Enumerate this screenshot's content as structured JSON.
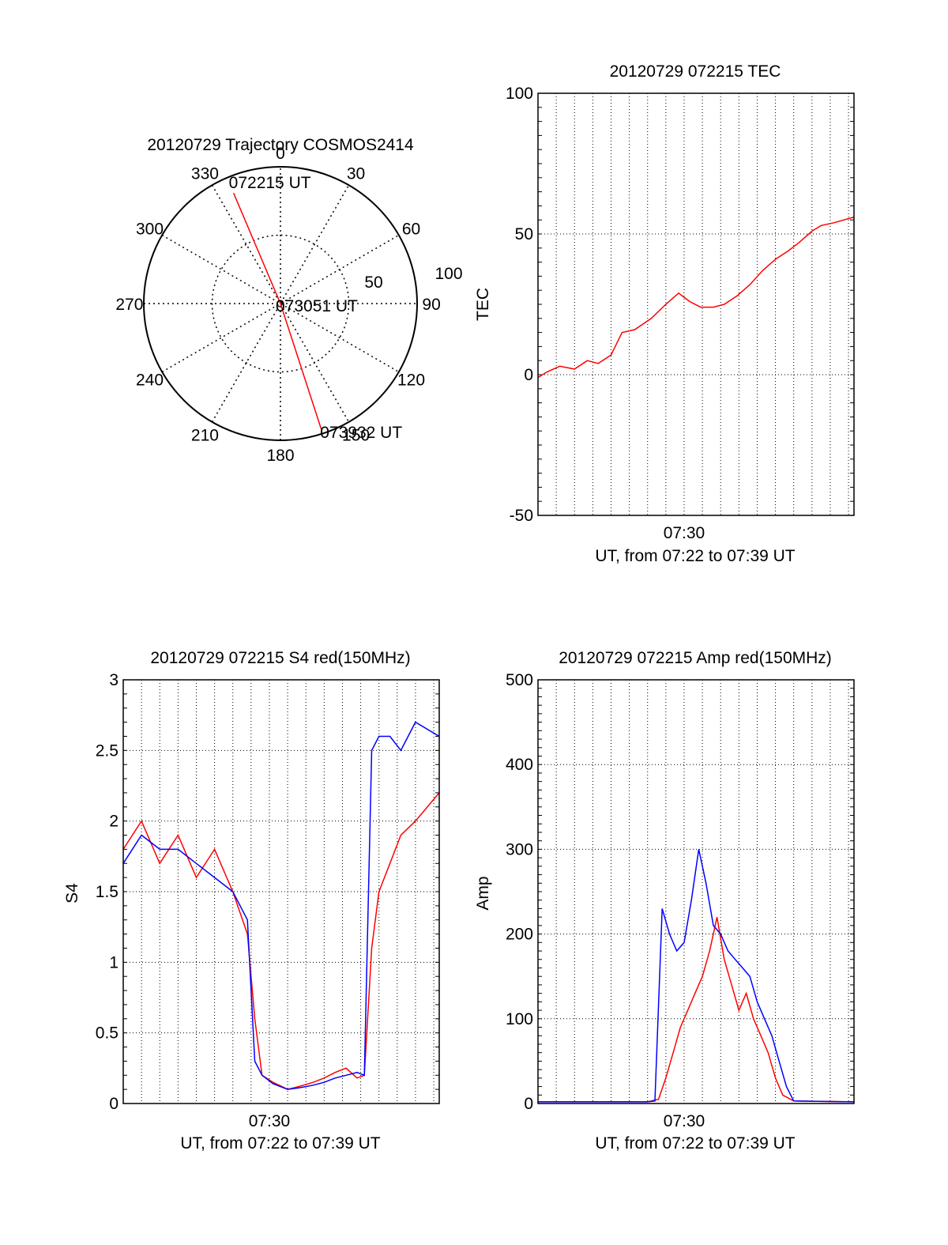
{
  "chart_data": [
    {
      "type": "polar",
      "title": "20120729 Trajectory COSMOS2414",
      "angle_labels": [
        "0",
        "30",
        "60",
        "90",
        "120",
        "150",
        "180",
        "210",
        "240",
        "270",
        "300",
        "330"
      ],
      "radial_labels": [
        "50",
        "100"
      ],
      "trajectory": {
        "color": "#ff0000",
        "points": [
          {
            "az": 337,
            "zen": 79
          },
          {
            "az": 0,
            "zen": 0
          },
          {
            "az": 162,
            "zen": 88
          }
        ],
        "labels": [
          {
            "text": "072215 UT",
            "at": "start"
          },
          {
            "text": "073051 UT",
            "at": "middle"
          },
          {
            "text": "073932 UT",
            "at": "end"
          }
        ]
      }
    },
    {
      "type": "line",
      "title": "20120729 072215 TEC",
      "ylabel": "TEC",
      "xlabel": "UT, from 07:22 to 07:39 UT",
      "xtick": "07:30",
      "yticks": [
        "-50",
        "0",
        "50",
        "100"
      ],
      "ylim": [
        -50,
        100
      ],
      "xlim_min": [
        0,
        17.3
      ],
      "grid": true,
      "series": [
        {
          "color": "#ff0000",
          "x": [
            0,
            0.5,
            1.2,
            2,
            2.7,
            3.3,
            4,
            4.6,
            5.3,
            6.2,
            7,
            7.7,
            8.3,
            8.9,
            9.6,
            10.2,
            10.9,
            11.6,
            12.3,
            13,
            13.7,
            14.3,
            15,
            15.5,
            16.2,
            17.3
          ],
          "y": [
            -1,
            1,
            3,
            2,
            5,
            4,
            7,
            15,
            16,
            20,
            25,
            29,
            26,
            24,
            24,
            25,
            28,
            32,
            37,
            41,
            44,
            47,
            51,
            53,
            54,
            56
          ]
        }
      ]
    },
    {
      "type": "line",
      "title": "20120729 072215 S4 red(150MHz)",
      "ylabel": "S4",
      "xlabel": "UT, from 07:22 to 07:39 UT",
      "xtick": "07:30",
      "yticks": [
        "0",
        "0.5",
        "1",
        "1.5",
        "2",
        "2.5",
        "3"
      ],
      "ylim": [
        0,
        3
      ],
      "xlim_min": [
        0,
        17.3
      ],
      "grid": true,
      "series": [
        {
          "color": "#ff0000",
          "x": [
            0,
            1,
            2,
            3,
            4,
            5,
            6,
            6.8,
            7.2,
            7.6,
            8.2,
            9,
            9.6,
            10.4,
            11,
            11.6,
            12.2,
            12.8,
            13.2,
            13.6,
            14,
            14.6,
            15.2,
            16,
            17.3
          ],
          "y": [
            1.8,
            2.0,
            1.7,
            1.9,
            1.6,
            1.8,
            1.5,
            1.2,
            0.6,
            0.2,
            0.15,
            0.1,
            0.12,
            0.15,
            0.18,
            0.22,
            0.25,
            0.18,
            0.2,
            1.1,
            1.5,
            1.7,
            1.9,
            2.0,
            2.2
          ]
        },
        {
          "color": "#0000ff",
          "x": [
            0,
            1,
            2,
            3,
            4,
            5,
            6,
            6.8,
            7.2,
            7.6,
            8.2,
            9,
            9.6,
            10.4,
            11,
            11.6,
            12.2,
            12.8,
            13.2,
            13.6,
            14,
            14.6,
            15.2,
            16,
            17.3
          ],
          "y": [
            1.7,
            1.9,
            1.8,
            1.8,
            1.7,
            1.6,
            1.5,
            1.3,
            0.3,
            0.2,
            0.14,
            0.1,
            0.11,
            0.13,
            0.15,
            0.18,
            0.2,
            0.22,
            0.2,
            2.5,
            2.6,
            2.6,
            2.5,
            2.7,
            2.6
          ]
        }
      ]
    },
    {
      "type": "line",
      "title": "20120729 072215 Amp red(150MHz)",
      "ylabel": "Amp",
      "xlabel": "UT, from 07:22 to 07:39 UT",
      "xtick": "07:30",
      "yticks": [
        "0",
        "100",
        "200",
        "300",
        "400",
        "500"
      ],
      "ylim": [
        0,
        500
      ],
      "xlim_min": [
        0,
        17.3
      ],
      "grid": true,
      "series": [
        {
          "color": "#ff0000",
          "x": [
            0,
            6,
            6.6,
            7,
            7.4,
            7.8,
            8.2,
            8.6,
            9,
            9.4,
            9.8,
            10.2,
            10.6,
            11,
            11.4,
            11.8,
            12.2,
            12.6,
            13,
            13.4,
            14,
            17.3
          ],
          "y": [
            2,
            2,
            5,
            30,
            60,
            90,
            110,
            130,
            150,
            180,
            220,
            170,
            140,
            110,
            130,
            100,
            80,
            60,
            30,
            10,
            3,
            2
          ]
        },
        {
          "color": "#0000ff",
          "x": [
            0,
            6,
            6.4,
            6.8,
            7.2,
            7.6,
            8,
            8.4,
            8.8,
            9.2,
            9.6,
            10,
            10.4,
            10.8,
            11.2,
            11.6,
            12,
            12.4,
            12.8,
            13.2,
            13.6,
            14,
            17.3
          ],
          "y": [
            2,
            2,
            3,
            230,
            200,
            180,
            190,
            240,
            300,
            260,
            210,
            200,
            180,
            170,
            160,
            150,
            120,
            100,
            80,
            50,
            20,
            3,
            2
          ]
        }
      ]
    }
  ]
}
